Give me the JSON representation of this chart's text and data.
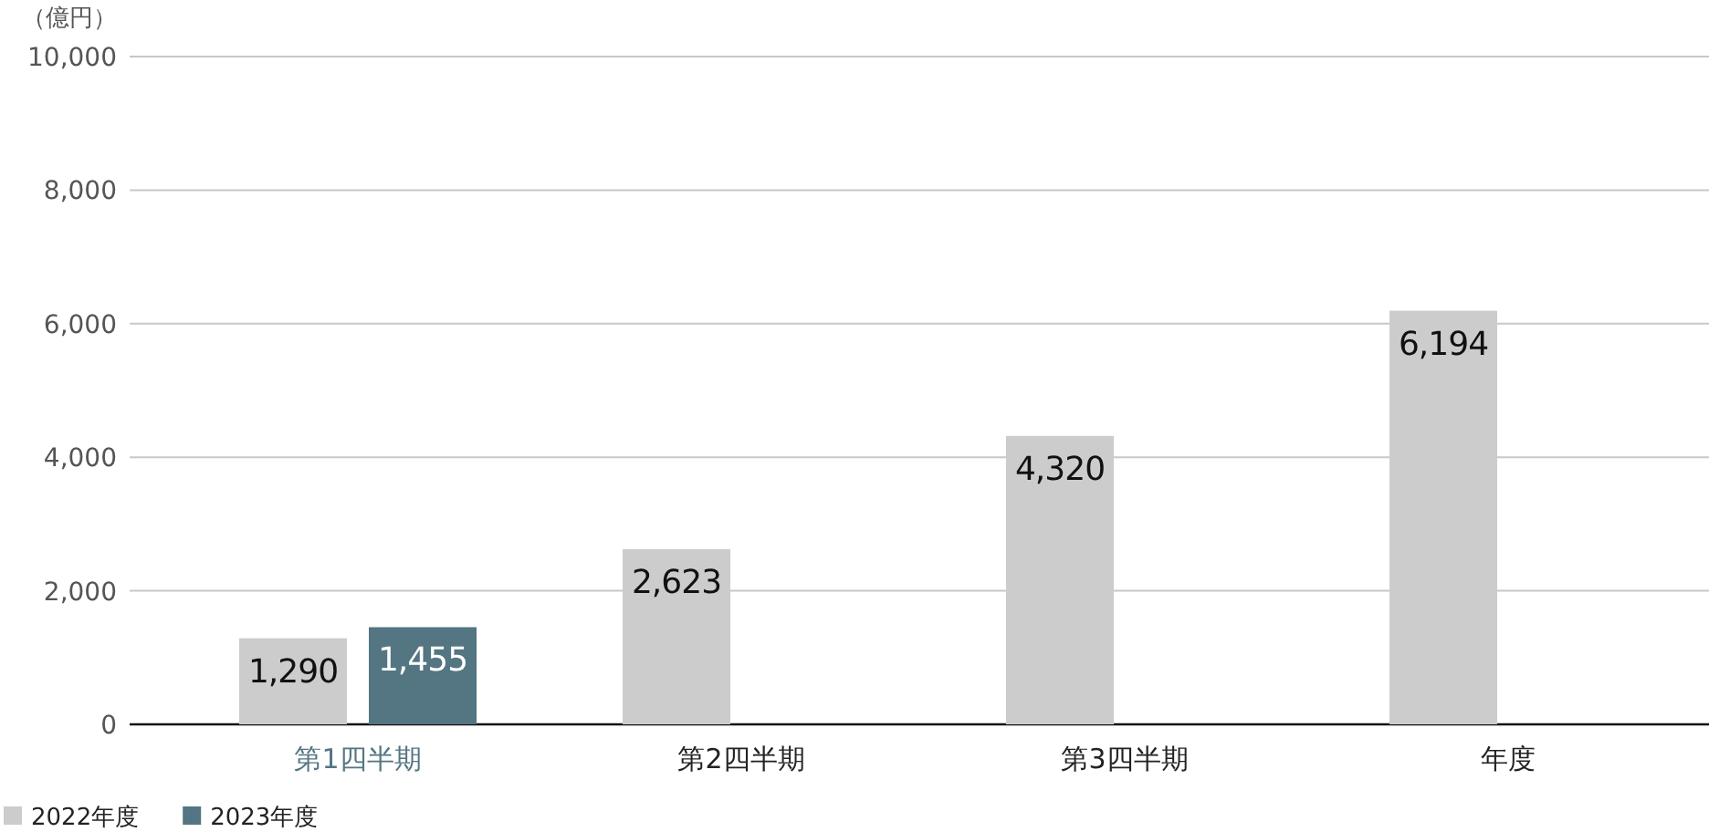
{
  "chart_data": {
    "type": "bar",
    "ylabel": "（億円）",
    "categories": [
      "第1四半期",
      "第2四半期",
      "第3四半期",
      "年度"
    ],
    "series": [
      {
        "name": "2022年度",
        "color": "#cccccc",
        "values": [
          1290,
          2623,
          4320,
          6194
        ],
        "value_labels": [
          "1,290",
          "2,623",
          "4,320",
          "6,194"
        ]
      },
      {
        "name": "2023年度",
        "color": "#547582",
        "values": [
          1455,
          null,
          null,
          null
        ],
        "value_labels": [
          "1,455",
          null,
          null,
          null
        ]
      }
    ],
    "ylim": [
      0,
      10000
    ],
    "yticks": [
      0,
      {
        "value": 2000,
        "label": "2,000"
      },
      {
        "value": 4000,
        "label": "4,000"
      },
      {
        "value": 6000,
        "label": "6,000"
      },
      {
        "value": 8000,
        "label": "8,000"
      },
      {
        "value": 10000,
        "label": "10,000"
      }
    ],
    "grid": "y",
    "legend": "bottom left"
  }
}
